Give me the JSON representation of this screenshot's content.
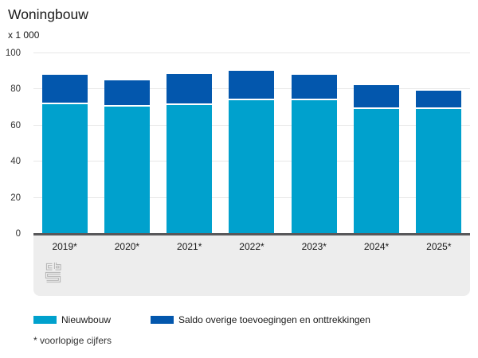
{
  "title": "Woningbouw",
  "unit_label": "x 1 000",
  "footnote": "* voorlopige cijfers",
  "colors": {
    "nieuwbouw": "#00a1cd",
    "saldo": "#0357ad",
    "axis_line": "#58585a",
    "gridline": "#e7e7e7",
    "footer_panel": "#ededed",
    "logo_gray": "#b3b3b3",
    "background": "#ffffff"
  },
  "chart_data": {
    "type": "bar",
    "stacked": true,
    "title": "Woningbouw",
    "ylabel": "x 1 000",
    "xlabel": "",
    "categories": [
      "2019*",
      "2020*",
      "2021*",
      "2022*",
      "2023*",
      "2024*",
      "2025*"
    ],
    "series": [
      {
        "name": "Nieuwbouw",
        "color": "#00a1cd",
        "values": [
          72,
          70.5,
          71.5,
          74,
          74,
          69,
          69
        ]
      },
      {
        "name": "Saldo overige toevoegingen en onttrekkingen",
        "color": "#0357ad",
        "values": [
          16,
          14.5,
          17,
          16.5,
          14,
          13.5,
          10.5
        ]
      }
    ],
    "stack_totals": [
      88,
      85,
      88.5,
      90.5,
      88,
      82.5,
      79.5
    ],
    "ylim": [
      0,
      100
    ],
    "yticks": [
      0,
      20,
      40,
      60,
      80,
      100
    ],
    "grid": true,
    "legend_position": "bottom",
    "source_logo": "cbs-logo"
  }
}
